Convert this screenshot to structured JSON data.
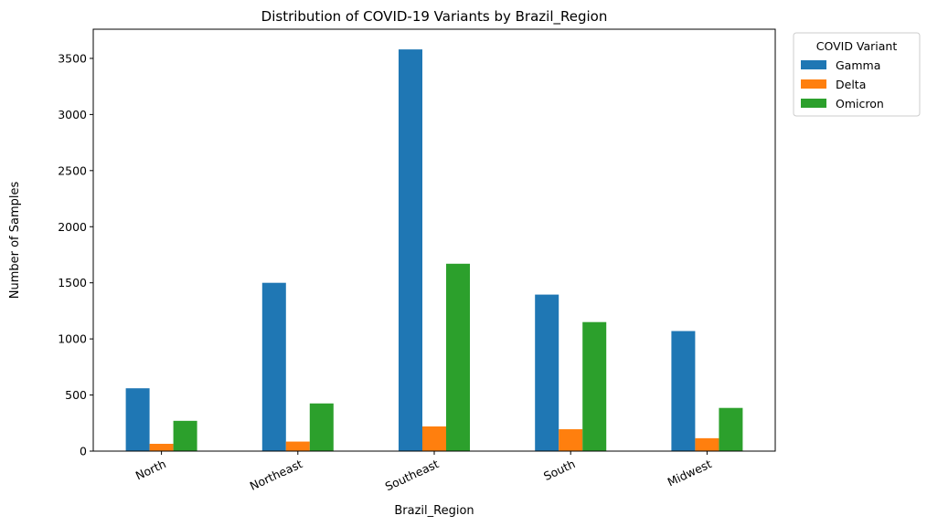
{
  "chart_data": {
    "type": "bar",
    "title": "Distribution of COVID-19 Variants by Brazil_Region",
    "xlabel": "Brazil_Region",
    "ylabel": "Number of Samples",
    "categories": [
      "North",
      "Northeast",
      "Southeast",
      "South",
      "Midwest"
    ],
    "series": [
      {
        "name": "Gamma",
        "color": "#1f77b4",
        "values": [
          560,
          1500,
          3580,
          1395,
          1070
        ]
      },
      {
        "name": "Delta",
        "color": "#ff7f0e",
        "values": [
          65,
          85,
          220,
          195,
          115
        ]
      },
      {
        "name": "Omicron",
        "color": "#2ca02c",
        "values": [
          270,
          425,
          1670,
          1150,
          385
        ]
      }
    ],
    "ylim": [
      0,
      3760
    ],
    "yticks": [
      0,
      500,
      1000,
      1500,
      2000,
      2500,
      3000,
      3500
    ],
    "grid": false,
    "legend": {
      "title": "COVID Variant",
      "placement": "outside-top-right"
    }
  }
}
